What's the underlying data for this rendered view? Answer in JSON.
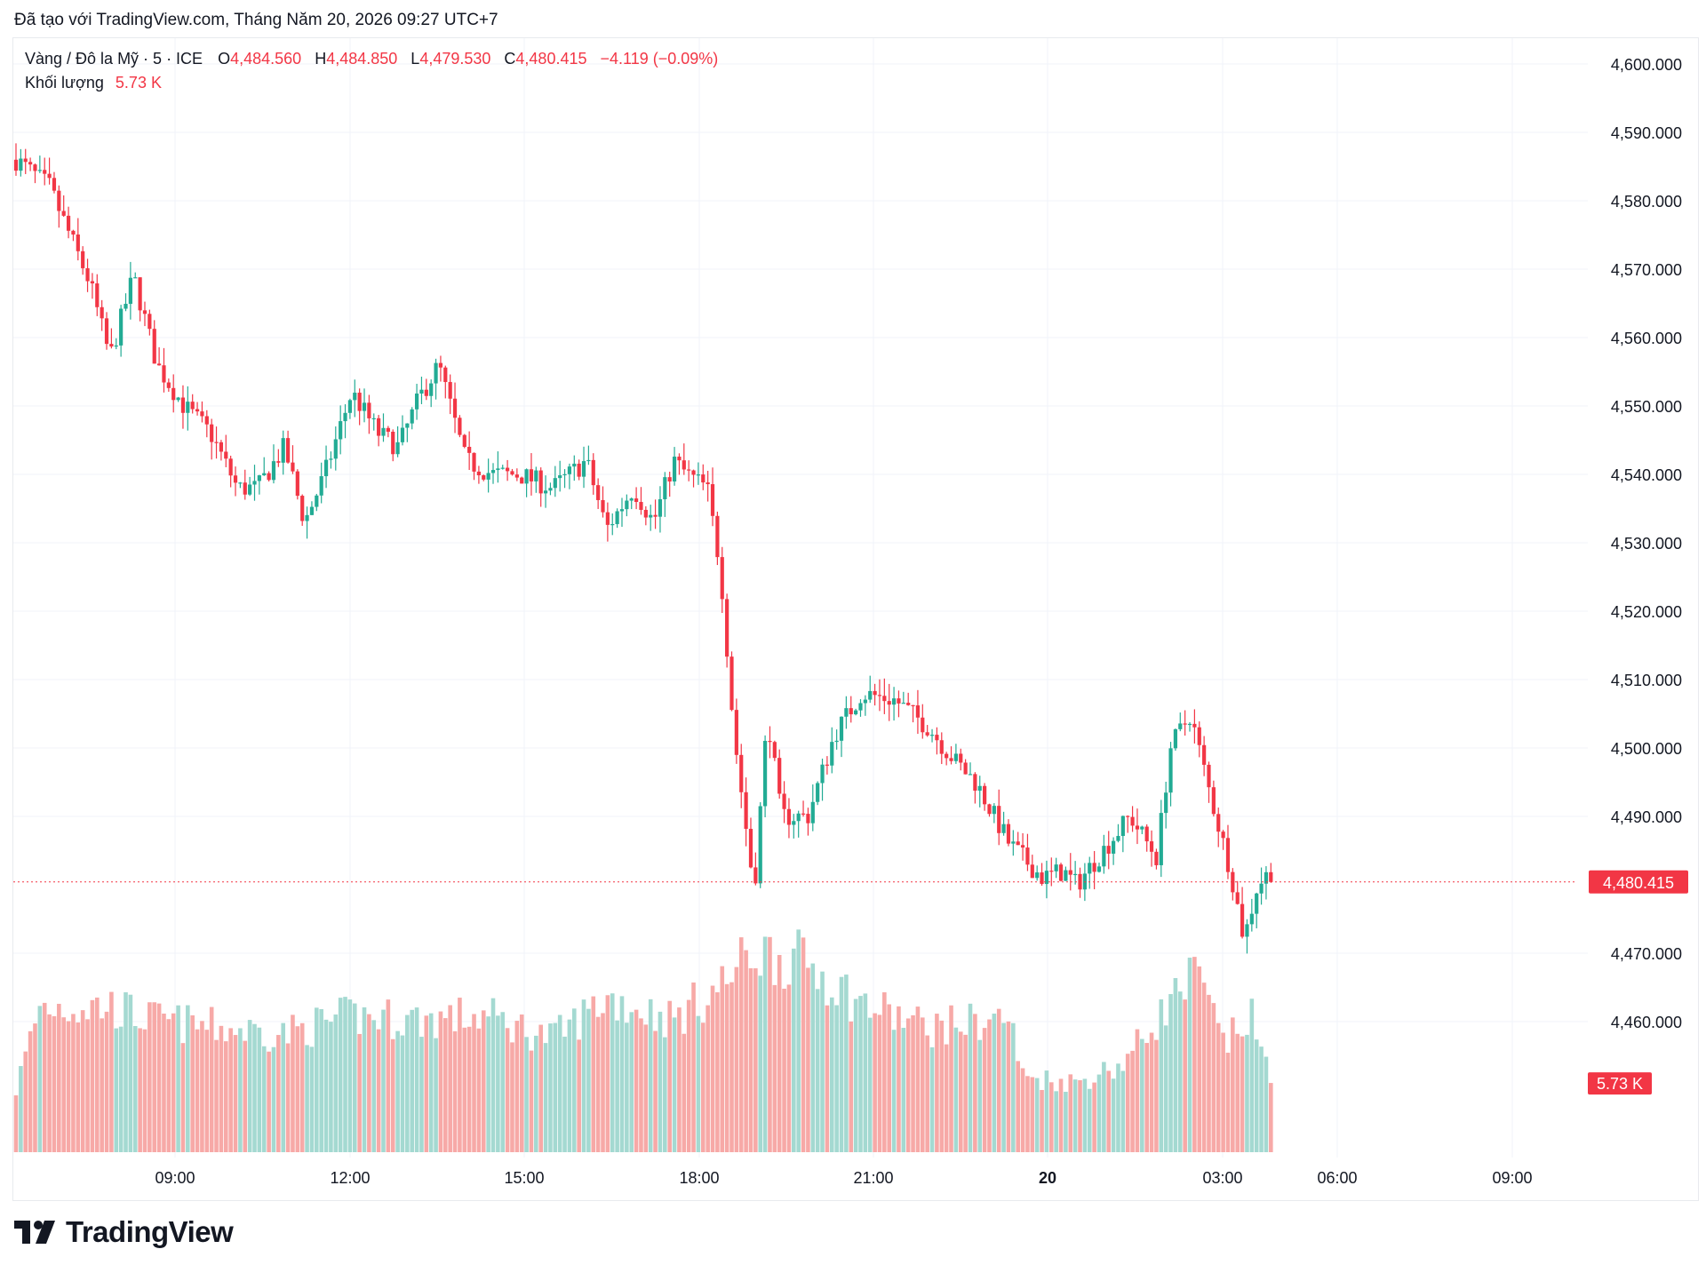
{
  "header": {
    "credit": "Đã tạo với TradingView.com, Tháng Năm 20, 2026 09:27 UTC+7"
  },
  "legend": {
    "symbol": "Vàng / Đô la Mỹ · 5 · ICE",
    "open_label": "O",
    "open": "4,484.560",
    "high_label": "H",
    "high": "4,484.850",
    "low_label": "L",
    "low": "4,479.530",
    "close_label": "C",
    "close": "4,480.415",
    "change": "−4.119 (−0.09%)",
    "volume_label": "Khối lượng",
    "volume": "5.73 K"
  },
  "colors": {
    "up": "#22ab94",
    "down": "#f23645",
    "up_volume": "#a4d9d1",
    "down_volume": "#f7a9a7",
    "grid": "#f0f3fa",
    "text": "#131722"
  },
  "footer": {
    "brand": "TradingView",
    "logo_icon": "tradingview-logo-icon"
  },
  "chart_data": {
    "type": "candlestick",
    "title": "Vàng / Đô la Mỹ · 5 · ICE",
    "interval_minutes": 5,
    "ylim": [
      4455,
      4605
    ],
    "y_ticks": [
      "4,600.000",
      "4,590.000",
      "4,580.000",
      "4,570.000",
      "4,560.000",
      "4,550.000",
      "4,540.000",
      "4,530.000",
      "4,520.000",
      "4,510.000",
      "4,500.000",
      "4,490.000",
      "4,470.000",
      "4,460.000"
    ],
    "x_ticks": [
      "09:00",
      "12:00",
      "15:00",
      "18:00",
      "21:00",
      "20",
      "03:00",
      "06:00",
      "09:00"
    ],
    "last_price": "4,480.415",
    "last_volume": "5.73 K",
    "bar_count": 264,
    "price_path": [
      [
        0,
        4586
      ],
      [
        10,
        4582
      ],
      [
        16,
        4575
      ],
      [
        22,
        4568
      ],
      [
        28,
        4557
      ],
      [
        35,
        4569
      ],
      [
        42,
        4556
      ],
      [
        50,
        4550
      ],
      [
        58,
        4546
      ],
      [
        66,
        4538
      ],
      [
        72,
        4538
      ],
      [
        80,
        4544
      ],
      [
        86,
        4533
      ],
      [
        92,
        4540
      ],
      [
        100,
        4552
      ],
      [
        108,
        4546
      ],
      [
        114,
        4544
      ],
      [
        120,
        4551
      ],
      [
        126,
        4556
      ],
      [
        134,
        4542
      ],
      [
        142,
        4540
      ],
      [
        150,
        4540
      ],
      [
        160,
        4538
      ],
      [
        170,
        4542
      ],
      [
        176,
        4532
      ],
      [
        184,
        4538
      ],
      [
        190,
        4533
      ],
      [
        196,
        4542
      ],
      [
        200,
        4540
      ],
      [
        206,
        4538
      ],
      [
        210,
        4526
      ],
      [
        214,
        4502
      ],
      [
        220,
        4479
      ],
      [
        224,
        4505
      ],
      [
        228,
        4490
      ],
      [
        236,
        4490
      ],
      [
        244,
        4502
      ],
      [
        252,
        4508
      ],
      [
        262,
        4507
      ],
      [
        272,
        4503
      ],
      [
        280,
        4498
      ],
      [
        286,
        4495
      ],
      [
        296,
        4486
      ],
      [
        300,
        4484
      ],
      [
        306,
        4481
      ],
      [
        312,
        4482
      ],
      [
        316,
        4480
      ],
      [
        324,
        4485
      ],
      [
        332,
        4490
      ],
      [
        340,
        4484
      ],
      [
        344,
        4500
      ],
      [
        350,
        4505
      ],
      [
        356,
        4493
      ],
      [
        362,
        4482
      ],
      [
        366,
        4472
      ],
      [
        370,
        4480
      ],
      [
        374,
        4482
      ]
    ],
    "volume_level": [
      [
        0,
        5.3
      ],
      [
        7,
        12.3
      ],
      [
        28,
        12.3
      ],
      [
        40,
        11.2
      ],
      [
        60,
        10.5
      ],
      [
        80,
        10.0
      ],
      [
        100,
        11.5
      ],
      [
        120,
        11.2
      ],
      [
        140,
        11.5
      ],
      [
        160,
        9.6
      ],
      [
        176,
        13.0
      ],
      [
        196,
        11.2
      ],
      [
        210,
        14.0
      ],
      [
        220,
        17.0
      ],
      [
        236,
        16.0
      ],
      [
        252,
        12.5
      ],
      [
        272,
        10.5
      ],
      [
        296,
        11.4
      ],
      [
        300,
        6.4
      ],
      [
        316,
        5.9
      ],
      [
        330,
        7.5
      ],
      [
        345,
        13.0
      ],
      [
        352,
        15.0
      ],
      [
        360,
        9.0
      ],
      [
        368,
        11.5
      ],
      [
        372,
        7.5
      ]
    ]
  }
}
